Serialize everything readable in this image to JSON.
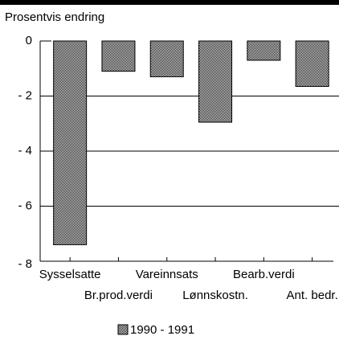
{
  "chart_data": {
    "type": "bar",
    "y_axis_title": "Prosentvis endring",
    "categories": [
      "Sysselsatte",
      "Br.prod.verdi",
      "Vareinnsats",
      "Lønnskostn.",
      "Bearb.verdi",
      "Ant. bedr."
    ],
    "series": [
      {
        "name": "1990 - 1991",
        "color": "#8c8c8c",
        "values": [
          -7.4,
          -1.1,
          -1.3,
          -2.95,
          -0.7,
          -1.65
        ]
      }
    ],
    "ylim": [
      -8,
      0
    ],
    "yticks": [
      0,
      {
        "value": -2,
        "label": "- 2"
      },
      {
        "value": -4,
        "label": "- 4"
      },
      {
        "value": -6,
        "label": "- 6"
      },
      {
        "value": -8,
        "label": "- 8"
      }
    ],
    "grid": true
  }
}
